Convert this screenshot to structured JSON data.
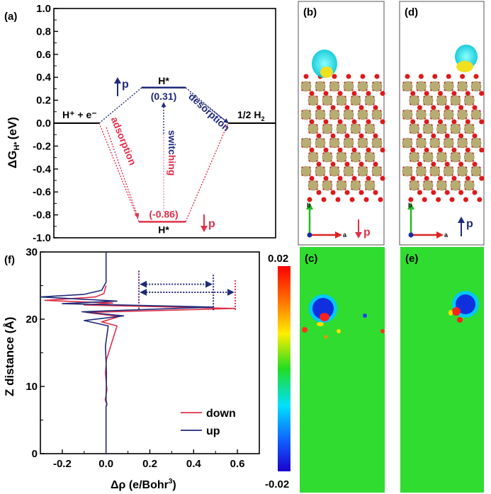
{
  "panel_labels": {
    "a": "(a)",
    "b": "(b)",
    "c": "(c)",
    "d": "(d)",
    "e": "(e)",
    "f": "(f)"
  },
  "chart_data": [
    {
      "type": "line",
      "panel": "a",
      "ylabel": "ΔG",
      "ylabel_sub": "H*",
      "ylabel_unit": "(eV)",
      "ylim": [
        -1.0,
        1.0
      ],
      "yticks": [
        "1.0",
        "0.8",
        "0.6",
        "0.4",
        "0.2",
        "0.0",
        "-0.2",
        "-0.4",
        "-0.6",
        "-0.8",
        "-1.0"
      ],
      "levels": [
        {
          "label": "H⁺ + e⁻",
          "value": 0.0
        },
        {
          "label": "H*",
          "value": 0.31,
          "value_label": "(0.31)",
          "color": "#1f2a7a"
        },
        {
          "label": "H*",
          "value": -0.86,
          "value_label": "(-0.86)",
          "color": "#e0304a"
        },
        {
          "label": "1/2 H",
          "sub": "2",
          "value": 0.0
        }
      ],
      "annotations": {
        "p_up": "p",
        "p_down": "p",
        "adsorption": "adsorption",
        "desorption": "desorption",
        "switching": "switching"
      },
      "colors": {
        "up": "#1f2a7a",
        "down": "#e0304a"
      }
    },
    {
      "type": "line",
      "panel": "f",
      "xlabel": "Δρ (e/Bohr",
      "xlabel_sup": "3",
      "xlabel_end": ")",
      "ylabel": "Z distance (Å)",
      "xlim": [
        -0.3,
        0.7
      ],
      "ylim": [
        0,
        30
      ],
      "xticks": [
        "-0.2",
        "0.0",
        "0.2",
        "0.4",
        "0.6"
      ],
      "yticks": [
        "0",
        "10",
        "20",
        "30"
      ],
      "series": [
        {
          "name": "down",
          "color": "#e0304a",
          "x": [
            0,
            0,
            0.003,
            -0.004,
            0.004,
            -0.003,
            0.002,
            0.05,
            -0.02,
            0.06,
            -0.09,
            0.59,
            -0.1,
            0.03,
            -0.28,
            -0.05,
            -0.01,
            0
          ],
          "y": [
            0,
            7,
            7.4,
            8,
            9.5,
            12,
            14,
            19,
            19.6,
            20.4,
            21,
            21.6,
            22.1,
            22.4,
            22.8,
            23.3,
            23.8,
            25
          ]
        },
        {
          "name": "up",
          "color": "#1f2a7a",
          "x": [
            0,
            0,
            0.004,
            0,
            0.002,
            -0.003,
            0.01,
            -0.1,
            0.08,
            -0.11,
            0.49,
            -0.2,
            0.05,
            -0.3,
            -0.1,
            -0.02,
            0,
            0
          ],
          "y": [
            0,
            7,
            7.3,
            8,
            12,
            16,
            19,
            19.8,
            20.5,
            21.1,
            21.8,
            22.3,
            22.7,
            23.3,
            23.7,
            24.3,
            25.5,
            30
          ]
        }
      ],
      "dotted_markers": [
        0.15,
        0.49,
        0.59
      ],
      "legend_placement": "bottom-right"
    }
  ],
  "panels": {
    "b": {
      "axis_b": "b",
      "axis_a": "a",
      "p": "p"
    },
    "d": {
      "axis_b": "b",
      "axis_a": "a",
      "p": "p"
    }
  },
  "colorbar": {
    "max": "0.02",
    "min": "-0.02"
  }
}
